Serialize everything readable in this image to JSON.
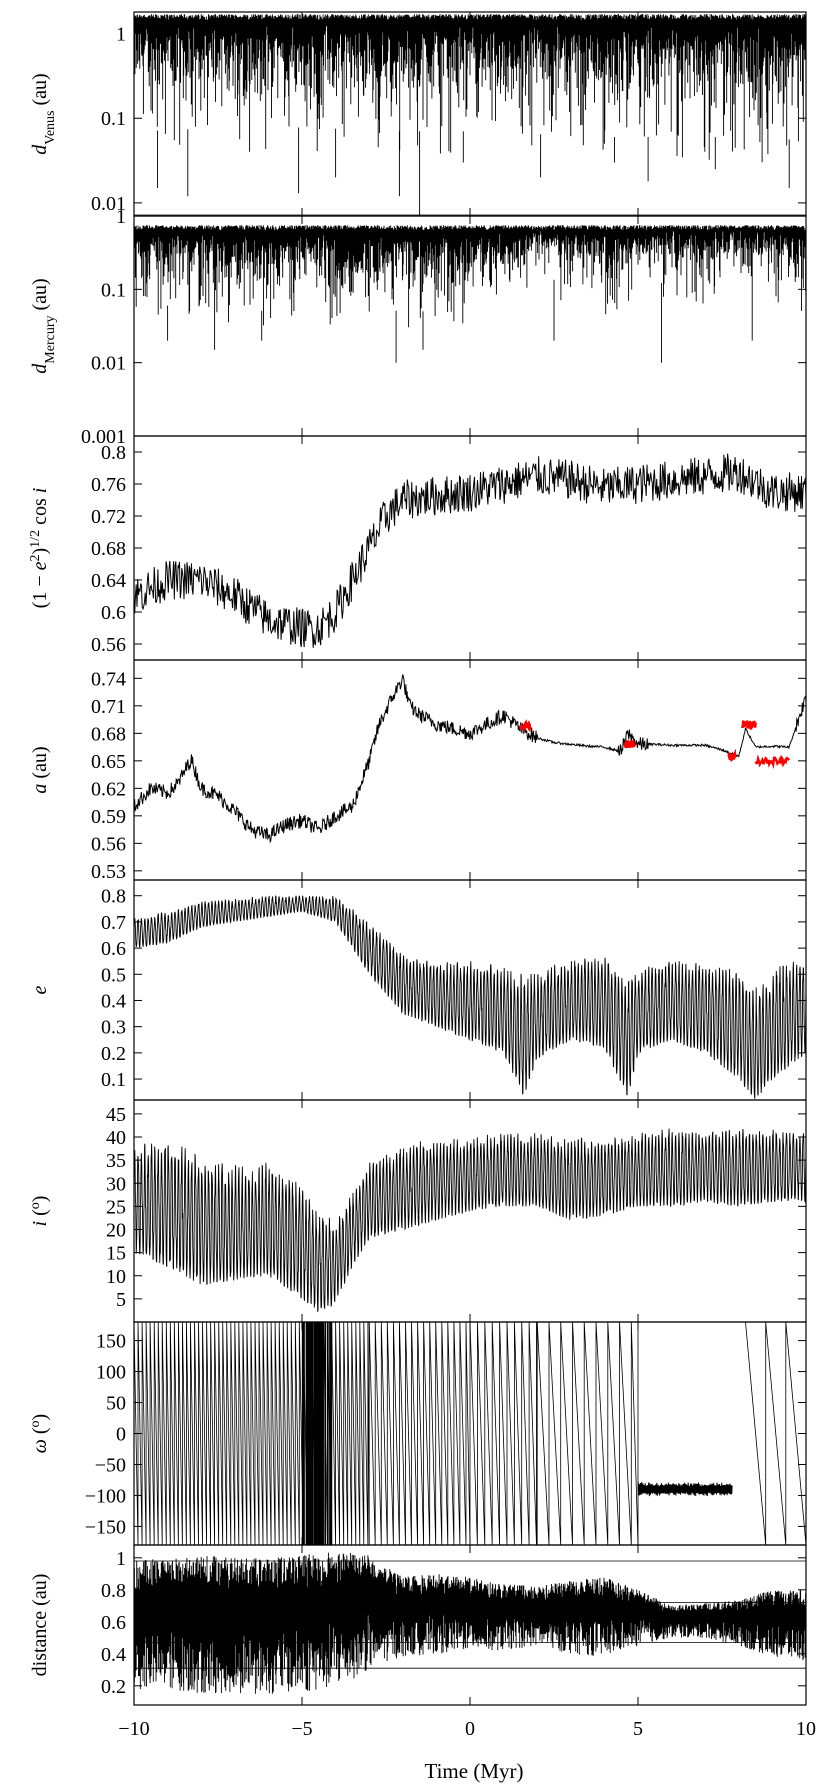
{
  "chart_data": [
    {
      "id": "dvenus",
      "type": "line",
      "ylabel_parts": [
        {
          "t": "d",
          "it": true
        },
        {
          "t": "Venus",
          "sub": true
        },
        {
          "t": " (au)"
        }
      ],
      "scale": "log",
      "ylim": [
        0.007,
        1.8
      ],
      "yticks": [
        0.01,
        0.1,
        1
      ],
      "ytick_labels": [
        "0.01",
        "0.1",
        "1"
      ],
      "color": "#000000",
      "style": "dense",
      "bands": {
        "x": [
          -10,
          -8,
          -6,
          -4,
          -2,
          0,
          2,
          4,
          6,
          8,
          10
        ],
        "upper": [
          1.7,
          1.7,
          1.7,
          1.7,
          1.7,
          1.7,
          1.7,
          1.7,
          1.7,
          1.7,
          1.7
        ],
        "lower": [
          0.07,
          0.075,
          0.08,
          0.075,
          0.07,
          0.07,
          0.065,
          0.06,
          0.06,
          0.06,
          0.055
        ]
      },
      "spikes": [
        [
          -9.3,
          0.015
        ],
        [
          -8.4,
          0.012
        ],
        [
          -5.1,
          0.013
        ],
        [
          -4.0,
          0.02
        ],
        [
          -2.1,
          0.012
        ],
        [
          -1.5,
          0.007
        ],
        [
          -0.2,
          0.03
        ],
        [
          2.1,
          0.02
        ],
        [
          4.3,
          0.03
        ],
        [
          5.3,
          0.018
        ],
        [
          7.3,
          0.025
        ],
        [
          9.5,
          0.015
        ]
      ],
      "hlines": [
        0.0072
      ]
    },
    {
      "id": "dmercury",
      "type": "line",
      "ylabel_parts": [
        {
          "t": "d",
          "it": true
        },
        {
          "t": "Mercury",
          "sub": true
        },
        {
          "t": " (au)"
        }
      ],
      "scale": "log",
      "ylim": [
        0.001,
        1.0
      ],
      "yticks": [
        0.001,
        0.01,
        0.1,
        1
      ],
      "ytick_labels": [
        "0.001",
        "0.01",
        "0.1",
        "1"
      ],
      "color": "#000000",
      "style": "dense",
      "bands": {
        "x": [
          -10,
          -8,
          -6,
          -4,
          -2,
          0,
          1,
          2,
          3,
          4,
          5,
          6,
          7,
          8,
          9,
          10
        ],
        "upper": [
          0.75,
          0.75,
          0.75,
          0.75,
          0.75,
          0.75,
          0.75,
          0.75,
          0.75,
          0.75,
          0.75,
          0.75,
          0.75,
          0.75,
          0.75,
          0.75
        ],
        "lower": [
          0.06,
          0.06,
          0.05,
          0.06,
          0.05,
          0.05,
          0.06,
          0.15,
          0.12,
          0.05,
          0.08,
          0.14,
          0.1,
          0.16,
          0.1,
          0.08
        ]
      },
      "spikes": [
        [
          -9.0,
          0.02
        ],
        [
          -7.6,
          0.015
        ],
        [
          -6.2,
          0.02
        ],
        [
          -2.2,
          0.01
        ],
        [
          -1.4,
          0.015
        ],
        [
          2.5,
          0.02
        ],
        [
          5.7,
          0.01
        ],
        [
          8.4,
          0.02
        ]
      ],
      "hlines": []
    },
    {
      "id": "kozai",
      "type": "line",
      "ylabel_parts": [
        {
          "t": "(1 − "
        },
        {
          "t": "e",
          "it": true
        },
        {
          "t": "2",
          "sup": true
        },
        {
          "t": ")"
        },
        {
          "t": "1/2",
          "sup": true
        },
        {
          "t": " cos "
        },
        {
          "t": "i",
          "it": true
        }
      ],
      "scale": "linear",
      "ylim": [
        0.54,
        0.82
      ],
      "yticks": [
        0.56,
        0.6,
        0.64,
        0.68,
        0.72,
        0.76,
        0.8
      ],
      "ytick_labels": [
        "0.56",
        "0.6",
        "0.64",
        "0.68",
        "0.72",
        "0.76",
        "0.8"
      ],
      "color": "#000000",
      "style": "noisy",
      "base": {
        "x": [
          -10,
          -9,
          -8,
          -7,
          -6,
          -5,
          -4.5,
          -4,
          -3.5,
          -3,
          -2.5,
          -2,
          -1,
          0,
          1,
          2,
          3,
          4,
          5,
          6,
          7,
          8,
          9,
          10
        ],
        "y": [
          0.62,
          0.64,
          0.64,
          0.62,
          0.59,
          0.58,
          0.58,
          0.6,
          0.64,
          0.68,
          0.72,
          0.74,
          0.745,
          0.75,
          0.76,
          0.77,
          0.765,
          0.755,
          0.76,
          0.765,
          0.77,
          0.775,
          0.75,
          0.75
        ]
      },
      "amp": 0.025
    },
    {
      "id": "semimajor",
      "type": "line",
      "ylabel_parts": [
        {
          "t": "a",
          "it": true
        },
        {
          "t": " (au)"
        }
      ],
      "scale": "linear",
      "ylim": [
        0.52,
        0.76
      ],
      "yticks": [
        0.53,
        0.56,
        0.59,
        0.62,
        0.65,
        0.68,
        0.71,
        0.74
      ],
      "ytick_labels": [
        "0.53",
        "0.56",
        "0.59",
        "0.62",
        "0.65",
        "0.68",
        "0.71",
        "0.74"
      ],
      "color": "#000000",
      "style": "steps",
      "base": {
        "x": [
          -10,
          -9.5,
          -9,
          -8.7,
          -8.3,
          -8,
          -7.5,
          -7,
          -6.5,
          -6,
          -5.5,
          -5,
          -4.5,
          -4,
          -3.5,
          -3,
          -2.7,
          -2.3,
          -2,
          -1.8,
          -1.5,
          -1,
          -0.5,
          0,
          0.5,
          1,
          1.5,
          2,
          2.5,
          3,
          3.5,
          4,
          4.5,
          4.7,
          5,
          5.5,
          6,
          7,
          7.5,
          8,
          8.2,
          8.5,
          9,
          9.5,
          10
        ],
        "y": [
          0.6,
          0.62,
          0.615,
          0.625,
          0.652,
          0.62,
          0.612,
          0.595,
          0.575,
          0.568,
          0.58,
          0.585,
          0.575,
          0.59,
          0.6,
          0.65,
          0.69,
          0.72,
          0.74,
          0.71,
          0.7,
          0.69,
          0.685,
          0.68,
          0.69,
          0.7,
          0.685,
          0.675,
          0.67,
          0.668,
          0.666,
          0.665,
          0.66,
          0.68,
          0.668,
          0.668,
          0.667,
          0.667,
          0.662,
          0.655,
          0.685,
          0.665,
          0.666,
          0.665,
          0.72
        ]
      },
      "amp": 0.008,
      "red_segments": [
        [
          1.5,
          1.8,
          0.688
        ],
        [
          4.6,
          4.9,
          0.668
        ],
        [
          7.7,
          7.9,
          0.655
        ],
        [
          8.1,
          8.5,
          0.69
        ],
        [
          8.5,
          9.5,
          0.65
        ]
      ],
      "red_color": "#ff0000"
    },
    {
      "id": "ecc",
      "type": "line",
      "ylabel_parts": [
        {
          "t": "e",
          "it": true
        }
      ],
      "scale": "linear",
      "ylim": [
        0.02,
        0.86
      ],
      "yticks": [
        0.1,
        0.2,
        0.3,
        0.4,
        0.5,
        0.6,
        0.7,
        0.8
      ],
      "ytick_labels": [
        "0.1",
        "0.2",
        "0.3",
        "0.4",
        "0.5",
        "0.6",
        "0.7",
        "0.8"
      ],
      "color": "#000000",
      "style": "osc",
      "bands": {
        "x": [
          -10,
          -9,
          -8,
          -7,
          -6,
          -5,
          -4,
          -3,
          -2,
          -1,
          0,
          1,
          1.6,
          2,
          3,
          4,
          4.7,
          5,
          6,
          7,
          8,
          8.5,
          9,
          10
        ],
        "upper": [
          0.72,
          0.74,
          0.78,
          0.79,
          0.8,
          0.8,
          0.8,
          0.7,
          0.58,
          0.55,
          0.55,
          0.54,
          0.5,
          0.52,
          0.56,
          0.58,
          0.5,
          0.52,
          0.56,
          0.55,
          0.52,
          0.45,
          0.52,
          0.58
        ]
      },
      "lower_x": [
        -10,
        -9,
        -8,
        -7,
        -6,
        -5,
        -4,
        -3,
        -2,
        -1,
        0,
        1,
        1.6,
        2,
        3,
        4,
        4.7,
        5,
        6,
        7,
        8,
        8.5,
        9,
        10
      ],
      "lower": [
        0.6,
        0.62,
        0.68,
        0.7,
        0.72,
        0.74,
        0.7,
        0.5,
        0.35,
        0.3,
        0.25,
        0.2,
        0.03,
        0.18,
        0.25,
        0.22,
        0.03,
        0.2,
        0.25,
        0.2,
        0.1,
        0.02,
        0.1,
        0.2
      ],
      "period": 0.1
    },
    {
      "id": "incl",
      "type": "line",
      "ylabel_parts": [
        {
          "t": "i",
          "it": true
        },
        {
          "t": " ("
        },
        {
          "t": "o",
          "sup": true
        },
        {
          "t": ")"
        }
      ],
      "scale": "linear",
      "ylim": [
        0,
        48
      ],
      "yticks": [
        5,
        10,
        15,
        20,
        25,
        30,
        35,
        40,
        45
      ],
      "ytick_labels": [
        "5",
        "10",
        "15",
        "20",
        "25",
        "30",
        "35",
        "40",
        "45"
      ],
      "color": "#000000",
      "style": "osc",
      "bands": {
        "x": [
          -10,
          -9,
          -8,
          -7,
          -6,
          -5,
          -4.5,
          -4,
          -3.5,
          -3,
          -2,
          -1,
          0,
          1,
          2,
          3,
          4,
          5,
          6,
          7,
          8,
          9,
          10
        ],
        "upper": [
          38,
          40,
          36,
          34,
          35,
          30,
          24,
          22,
          28,
          35,
          38,
          40,
          40,
          41,
          41,
          40,
          40,
          41,
          42,
          42,
          42,
          42,
          42
        ]
      },
      "lower_x": [
        -10,
        -9,
        -8,
        -7,
        -6,
        -5,
        -4.5,
        -4,
        -3.5,
        -3,
        -2,
        -1,
        0,
        1,
        2,
        3,
        4,
        5,
        6,
        7,
        8,
        9,
        10
      ],
      "lower": [
        15,
        12,
        8,
        9,
        10,
        5,
        2,
        4,
        12,
        18,
        20,
        22,
        24,
        25,
        25,
        22,
        23,
        25,
        25,
        26,
        25,
        26,
        26
      ],
      "period": 0.1
    },
    {
      "id": "omega",
      "type": "line",
      "ylabel_parts": [
        {
          "t": "ω",
          "it": true
        },
        {
          "t": " ("
        },
        {
          "t": "o",
          "sup": true
        },
        {
          "t": ")"
        }
      ],
      "scale": "linear",
      "ylim": [
        -180,
        180
      ],
      "yticks": [
        -150,
        -100,
        -50,
        0,
        50,
        100,
        150
      ],
      "ytick_labels": [
        "−150",
        "−100",
        "−50",
        "0",
        "50",
        "100",
        "150"
      ],
      "color": "#000000",
      "style": "sawtooth",
      "circ_segments": [
        {
          "x0": -10,
          "x1": -3,
          "period": 0.12
        },
        {
          "x0": -3,
          "x1": 0,
          "period": 0.18
        },
        {
          "x0": 0,
          "x1": 2,
          "period": 0.22
        },
        {
          "x0": 2,
          "x1": 5,
          "period": 0.35
        },
        {
          "x0": 8.2,
          "x1": 10,
          "period": 0.6
        }
      ],
      "lib_segment": {
        "x0": 5,
        "x1": 7.8,
        "center": -90,
        "amp": 12
      }
    },
    {
      "id": "distance",
      "type": "line",
      "ylabel_parts": [
        {
          "t": "distance (au)"
        }
      ],
      "scale": "linear",
      "ylim": [
        0.08,
        1.08
      ],
      "yticks": [
        0.2,
        0.4,
        0.6,
        0.8,
        1
      ],
      "ytick_labels": [
        "0.2",
        "0.4",
        "0.6",
        "0.8",
        "1"
      ],
      "color": "#000000",
      "style": "dense",
      "bands": {
        "x": [
          -10,
          -9,
          -8,
          -7,
          -6,
          -5,
          -4,
          -3,
          -2.5,
          -2,
          -1,
          0,
          1,
          2,
          3,
          4,
          5,
          6,
          7,
          8,
          9,
          10
        ],
        "upper": [
          0.98,
          1.0,
          1.02,
          1.0,
          1.0,
          1.02,
          1.04,
          1.02,
          0.95,
          0.88,
          0.9,
          0.88,
          0.84,
          0.82,
          0.86,
          0.88,
          0.8,
          0.7,
          0.72,
          0.74,
          0.8,
          0.8
        ],
        "lower": [
          0.18,
          0.17,
          0.15,
          0.15,
          0.15,
          0.15,
          0.18,
          0.3,
          0.35,
          0.38,
          0.4,
          0.42,
          0.42,
          0.45,
          0.4,
          0.38,
          0.45,
          0.5,
          0.5,
          0.45,
          0.38,
          0.35
        ]
      },
      "spikes": [],
      "hlines": [
        0.98,
        0.72,
        0.31,
        0.47
      ]
    }
  ],
  "x_axis": {
    "label": "Time (Myr)",
    "xlim": [
      -10,
      10
    ],
    "ticks": [
      -10,
      -5,
      0,
      5,
      10
    ],
    "tick_labels": [
      "−10",
      "−5",
      "0",
      "5",
      "10"
    ]
  }
}
